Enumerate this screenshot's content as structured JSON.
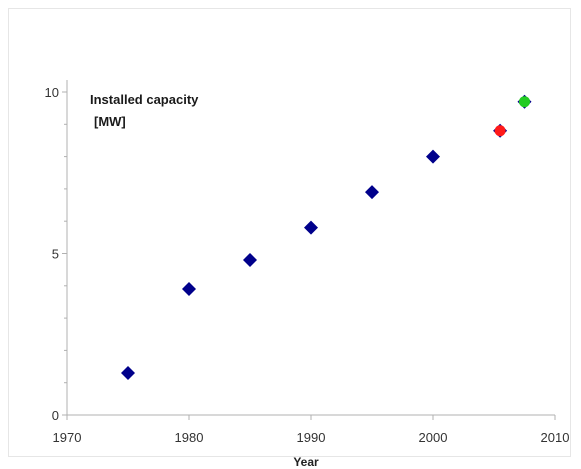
{
  "chart_data": {
    "type": "scatter",
    "title": "",
    "xlabel": "Year",
    "ylabel": "",
    "annotation": [
      "Installed capacity",
      "[MW]"
    ],
    "xlim": [
      1970,
      2010
    ],
    "ylim": [
      0,
      10
    ],
    "x_ticks": [
      1970,
      1980,
      1990,
      2000,
      2010
    ],
    "x_tick_labels": [
      "1970",
      "1980",
      "1990",
      "2000",
      "2010"
    ],
    "y_ticks": [
      0,
      5,
      10
    ],
    "y_tick_labels": [
      "0",
      "5",
      "10"
    ],
    "y_minor_ticks": [
      1,
      2,
      3,
      4,
      6,
      7,
      8,
      9
    ],
    "grid": false,
    "series": [
      {
        "color": "#00008b",
        "marker": "diamond",
        "points": [
          {
            "x": 1975,
            "y": 1.3
          },
          {
            "x": 1980,
            "y": 3.9
          },
          {
            "x": 1985,
            "y": 4.8
          },
          {
            "x": 1990,
            "y": 5.8
          },
          {
            "x": 1995,
            "y": 6.9
          },
          {
            "x": 2000,
            "y": 8.0
          },
          {
            "x": 2005.5,
            "y": 8.8
          },
          {
            "x": 2007.5,
            "y": 9.7
          }
        ]
      },
      {
        "color": "#ff1a1a",
        "marker": "circle",
        "points": [
          {
            "x": 2005.5,
            "y": 8.8
          }
        ]
      },
      {
        "color": "#22cc22",
        "marker": "circle",
        "points": [
          {
            "x": 2007.5,
            "y": 9.7
          }
        ]
      }
    ]
  }
}
